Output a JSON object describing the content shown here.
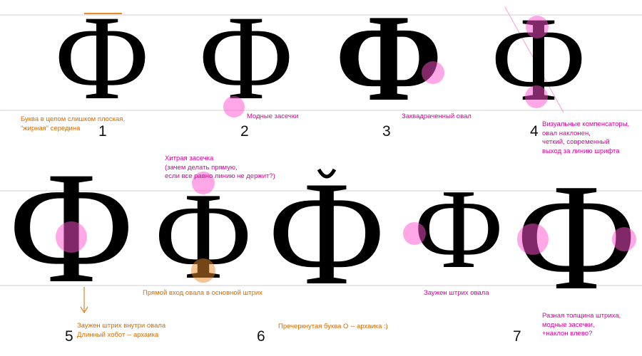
{
  "colors": {
    "orange": "#d66b00",
    "magenta": "#e0009a",
    "highlight_pink": "#ff4fd0",
    "highlight_orange": "#e88a2a",
    "guide_line": "#cfcfcf"
  },
  "glyph_char": "Ф",
  "variants": [
    {
      "number": "1",
      "note": "Буква в целом слишком плоская,\n“жирная” середина"
    },
    {
      "number": "2",
      "note": "Модные засечки"
    },
    {
      "number": "3",
      "note": "Заквадраченный овал"
    },
    {
      "number": "4",
      "note": "Визуальные компенсаторы,\nовал наклонен,\nчеткий, современный\nвыход за линию шрифта"
    },
    {
      "number": "5",
      "note": "Заужен штрих внутри овала\nДлинный хобот -- архаика"
    },
    {
      "number": "6",
      "note_top": "Хитрая засечка\n(зачем делать прямую,\nесли все равно линию не держит?)",
      "note_bottom": "Прямой вход овала в основной штрих",
      "note_extra": "Пречеркнутая буква О -- архаика :)"
    },
    {
      "number": "7",
      "note_mid": "Заужен штрих овала",
      "note_right": "Разная толщина штриха,\nмодные засечки,\n+наклон влево?"
    }
  ]
}
